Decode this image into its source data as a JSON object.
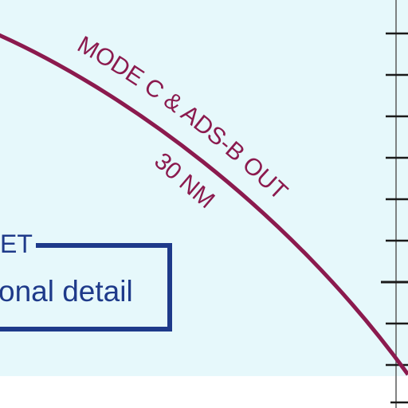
{
  "map": {
    "boundary_label": "MODE C & ADS-B OUT",
    "radius_label": "30 NM",
    "boundary_color": "#8b1a4e",
    "background_color": "#e6f8fb",
    "tick_color": "#1a1a1a"
  },
  "inset": {
    "title_fragment": "ET",
    "text_fragment": "onal detail",
    "border_color": "#1e3a8a"
  }
}
